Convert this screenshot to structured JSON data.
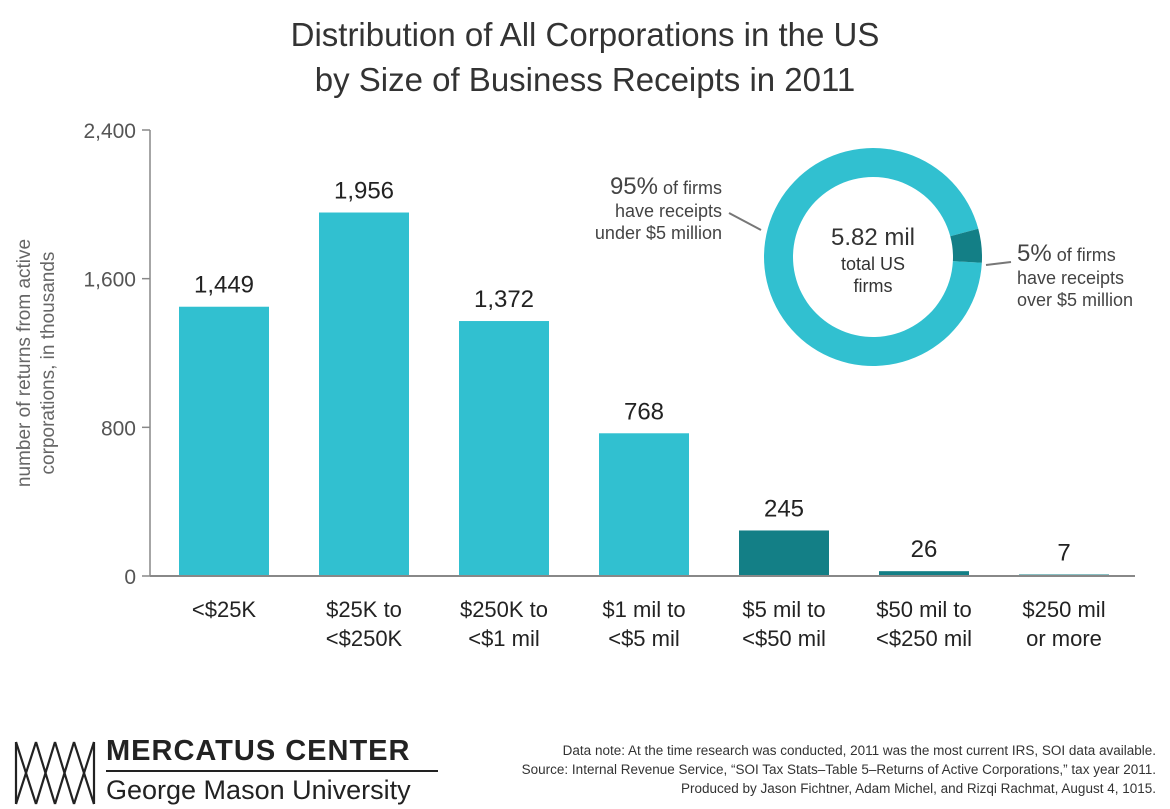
{
  "title": {
    "line1": "Distribution of All Corporations in the US",
    "line2": "by Size of Business Receipts in 2011"
  },
  "colors": {
    "primary": "#31c0d0",
    "dark": "#137f86",
    "axis": "#888888",
    "text": "#333333"
  },
  "chart_data": {
    "type": "bar",
    "ylabel": "number of returns from active corporations, in thousands",
    "ylabel_lines": [
      "number of returns from active",
      "corporations, in thousands"
    ],
    "ylim": [
      0,
      2400
    ],
    "yticks": [
      0,
      800,
      1600,
      2400
    ],
    "ytick_labels": [
      "0",
      "800",
      "1,600",
      "2,400"
    ],
    "grid": false,
    "categories": [
      [
        "<$25K"
      ],
      [
        "$25K to",
        "<$250K"
      ],
      [
        "$250K to",
        "<$1 mil"
      ],
      [
        "$1 mil to",
        "<$5 mil"
      ],
      [
        "$5 mil to",
        "<$50 mil"
      ],
      [
        "$50 mil to",
        "<$250 mil"
      ],
      [
        "$250 mil",
        "or more"
      ]
    ],
    "values": [
      1449,
      1956,
      1372,
      768,
      245,
      26,
      7
    ],
    "value_labels": [
      "1,449",
      "1,956",
      "1,372",
      "768",
      "245",
      "26",
      "7"
    ],
    "bar_colors": [
      "#31c0d0",
      "#31c0d0",
      "#31c0d0",
      "#31c0d0",
      "#137f86",
      "#137f86",
      "#137f86"
    ]
  },
  "donut": {
    "type": "pie",
    "center_value": "5.82 mil",
    "center_lines": [
      "total US",
      "firms"
    ],
    "slices": [
      {
        "value": 95,
        "color": "#31c0d0"
      },
      {
        "value": 5,
        "color": "#137f86"
      }
    ],
    "left_pct": "95%",
    "left_lines": [
      " of firms",
      "have receipts",
      "under $5 million"
    ],
    "right_pct": "5%",
    "right_lines": [
      " of firms",
      "have receipts",
      "over $5 million"
    ]
  },
  "footer": {
    "brand_top": "MERCATUS CENTER",
    "brand_bottom": "George Mason University",
    "note1": "Data note: At the time research was conducted, 2011 was the most current IRS, SOI data available.",
    "note2": "Source: Internal Revenue Service, “SOI Tax Stats–Table 5–Returns of Active Corporations,” tax year 2011.",
    "note3": "Produced by Jason Fichtner, Adam Michel, and Rizqi Rachmat, August 4, 1015."
  }
}
